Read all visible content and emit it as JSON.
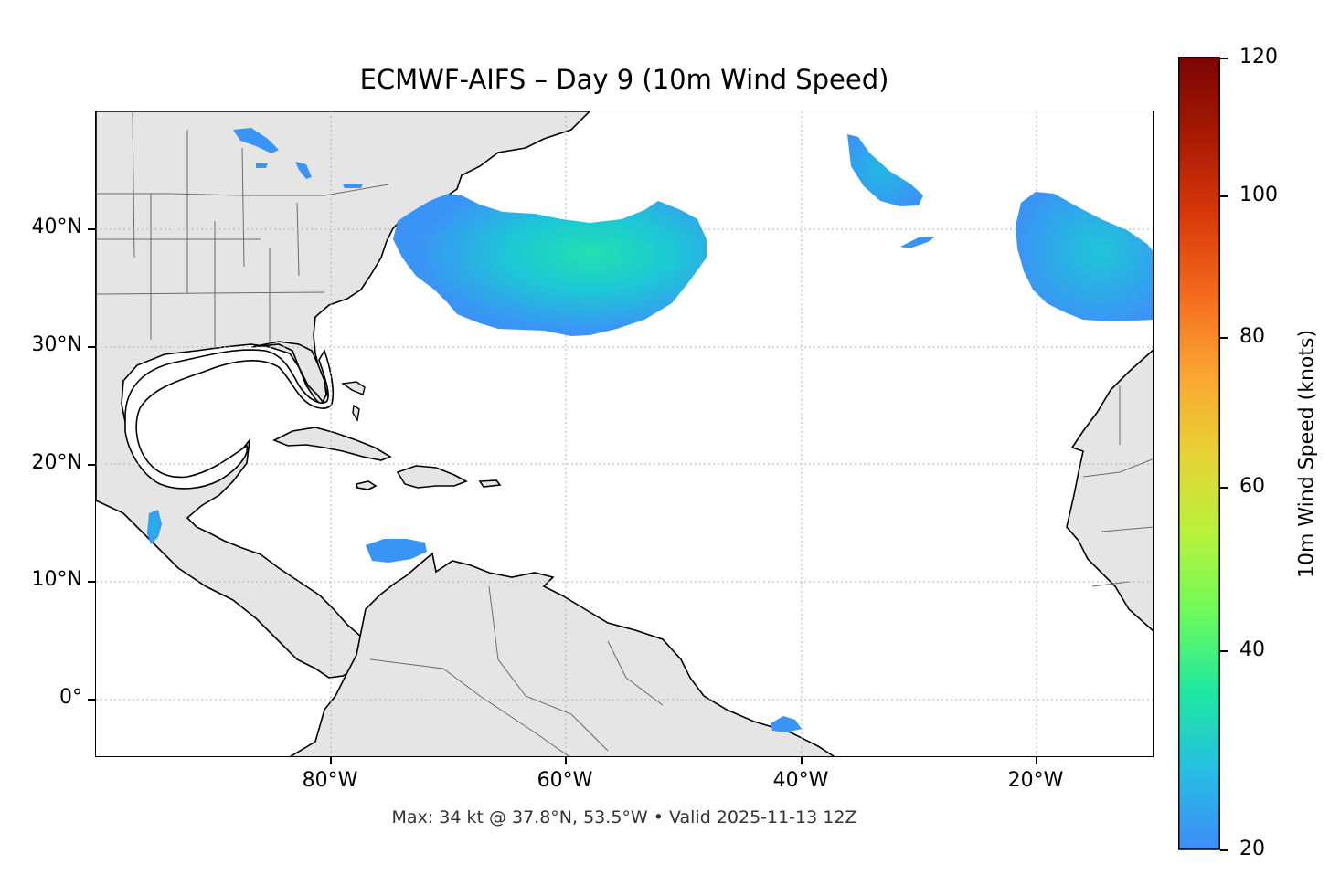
{
  "title": "ECMWF-AIFS – Day 9 (10m Wind Speed)",
  "footer": "Max: 34 kt @ 37.8°N, 53.5°W • Valid 2025-11-13 12Z",
  "map": {
    "lon_range": [
      -100,
      -10
    ],
    "lat_range": [
      -5,
      50
    ],
    "x_ticks": [
      "80°W",
      "60°W",
      "40°W",
      "20°W"
    ],
    "y_ticks": [
      "40°N",
      "30°N",
      "20°N",
      "10°N",
      "0°"
    ],
    "gridlines": true,
    "land_color": "#e5e5e5",
    "coast_color": "#000000",
    "border_color": "#6b6b6b",
    "gridline_color": "#b0b0b0"
  },
  "colorbar": {
    "label": "10m Wind Speed (knots)",
    "min": 20,
    "max": 120,
    "ticks": [
      "20",
      "40",
      "60",
      "80",
      "100",
      "120"
    ],
    "extend": "max",
    "colormap": "turbo"
  },
  "wind_regions": [
    {
      "name": "Atlantic storm east of US coast",
      "max_kt": 34
    },
    {
      "name": "Central North Atlantic",
      "max_kt": 26
    },
    {
      "name": "Northeast Atlantic near Azores",
      "max_kt": 27
    },
    {
      "name": "Caribbean north of Colombia",
      "max_kt": 22
    },
    {
      "name": "Gulf of Tehuantepec",
      "max_kt": 24
    },
    {
      "name": "Off NE Brazil",
      "max_kt": 21
    },
    {
      "name": "Great Lakes",
      "max_kt": 21
    }
  ]
}
